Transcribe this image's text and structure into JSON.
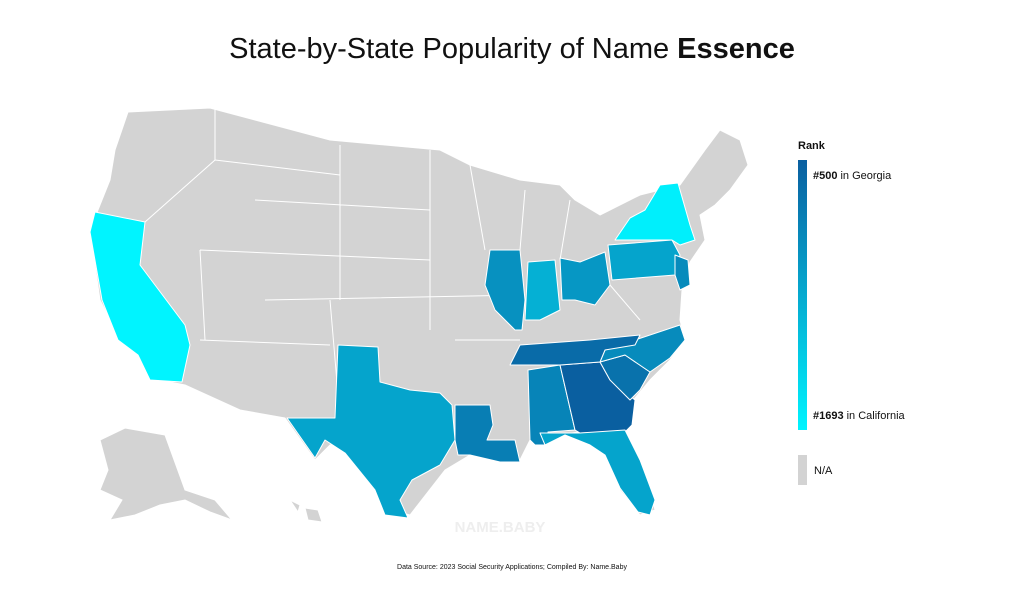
{
  "title": "State-by-State Popularity of Name",
  "title_name": "Essence",
  "legend": {
    "title": "Rank",
    "max": {
      "value": 500,
      "label": "#500"
    },
    "max_note": "in Georgia",
    "min": {
      "value": 1693,
      "label": "#1693"
    },
    "min_note": "in California",
    "na": "N/A"
  },
  "regions": {
    "values": [
      1693,
      1050,
      750,
      800,
      500,
      1050,
      650,
      850,
      600,
      900,
      1150,
      950,
      1050,
      850,
      1650
    ]
  },
  "watermark": "NAME.BABY",
  "source": "Data Source: 2023 Social Security Applications; Compiled By: Name.Baby"
}
